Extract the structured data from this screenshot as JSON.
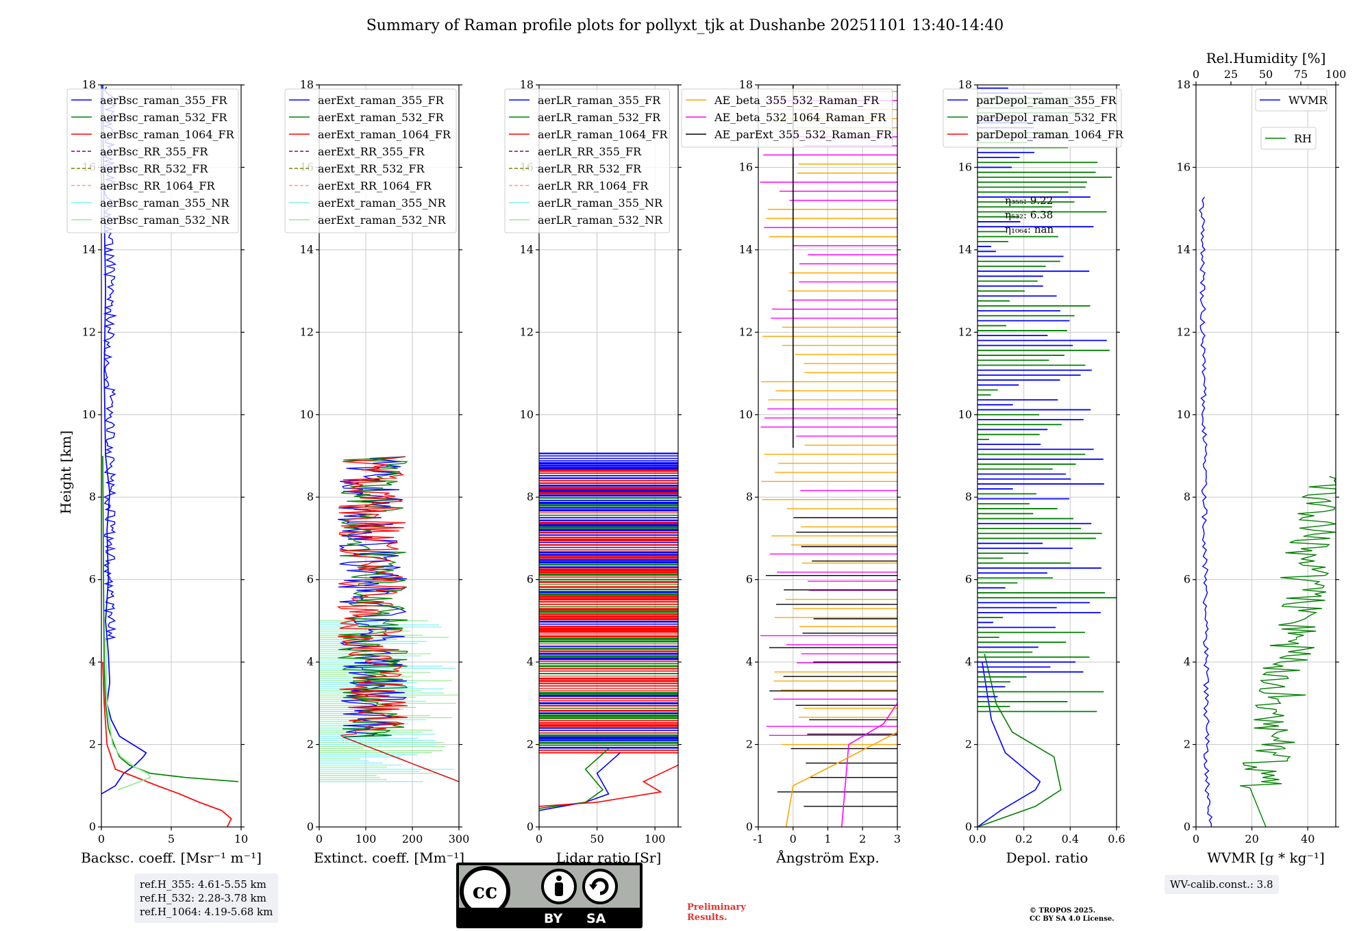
{
  "title": "Summary of Raman profile plots for pollyxt_tjk at Dushanbe 20251101 13:40-14:40",
  "y_axis": {
    "label": "Height [km]",
    "ticks": [
      0,
      2,
      4,
      6,
      8,
      10,
      12,
      14,
      16,
      18
    ],
    "range": [
      0,
      18
    ]
  },
  "chart_data": [
    {
      "type": "line",
      "name": "backscatter",
      "xlabel": "Backsc. coeff. [Msr⁻¹ m⁻¹]",
      "xlim": [
        0,
        10
      ],
      "xticks": [
        0,
        5,
        10
      ],
      "legend": [
        "aerBsc_raman_355_FR",
        "aerBsc_raman_532_FR",
        "aerBsc_raman_1064_FR",
        "aerBsc_RR_355_FR",
        "aerBsc_RR_532_FR",
        "aerBsc_RR_1064_FR",
        "aerBsc_raman_355_NR",
        "aerBsc_raman_532_NR"
      ],
      "series": [
        {
          "name": "aerBsc_raman_355_FR",
          "x": [
            0,
            0.5,
            1.0,
            1.6,
            2.4,
            3.0,
            3.2,
            1.3,
            0.7,
            0.4,
            0.6,
            0.5,
            0.3,
            0.5,
            0.4,
            0.6,
            0.3,
            0.2,
            0.3,
            0.15,
            0.1
          ],
          "h": [
            0.8,
            0.9,
            1.0,
            1.3,
            1.5,
            1.7,
            1.8,
            2.2,
            2.6,
            3.0,
            3.5,
            4.2,
            5.0,
            6.0,
            7.2,
            8.1,
            9.0,
            11.0,
            13.0,
            16.0,
            18.0
          ]
        },
        {
          "name": "aerBsc_raman_532_FR",
          "x": [
            9.8,
            6.0,
            3.5,
            2.0,
            1.3,
            0.9,
            0.5,
            0.3,
            0.2,
            0.15,
            0.1
          ],
          "h": [
            1.1,
            1.2,
            1.3,
            1.5,
            1.7,
            2.0,
            2.4,
            3.0,
            4.0,
            6.0,
            9.0
          ]
        },
        {
          "name": "aerBsc_raman_1064_FR",
          "x": [
            9.0,
            9.3,
            8.6,
            7.0,
            5.6,
            4.0,
            2.5,
            1.0,
            0.4,
            0.2,
            0.1
          ],
          "h": [
            0,
            0.2,
            0.4,
            0.6,
            0.8,
            1.0,
            1.2,
            1.4,
            2.0,
            3.0,
            4.0
          ]
        },
        {
          "name": "aerBsc_raman_532_NR",
          "x": [
            1.2,
            2.0,
            3.5,
            3.3,
            2.4,
            1.4,
            0.8,
            0.4,
            0.3
          ],
          "h": [
            0.9,
            1.0,
            1.2,
            1.3,
            1.45,
            1.7,
            2.0,
            3.0,
            4.6
          ]
        }
      ]
    },
    {
      "type": "line",
      "name": "extinction",
      "xlabel": "Extinct. coeff. [Mm⁻¹]",
      "xlim": [
        0,
        300
      ],
      "xticks": [
        0,
        100,
        200,
        300
      ],
      "legend": [
        "aerExt_raman_355_FR",
        "aerExt_raman_532_FR",
        "aerExt_raman_1064_FR",
        "aerExt_RR_355_FR",
        "aerExt_RR_532_FR",
        "aerExt_RR_1064_FR",
        "aerExt_raman_355_NR",
        "aerExt_raman_532_NR"
      ]
    },
    {
      "type": "line",
      "name": "lidar_ratio",
      "xlabel": "Lidar ratio [Sr]",
      "xlim": [
        0,
        120
      ],
      "xticks": [
        0,
        50,
        100
      ],
      "legend": [
        "aerLR_raman_355_FR",
        "aerLR_raman_532_FR",
        "aerLR_raman_1064_FR",
        "aerLR_RR_355_FR",
        "aerLR_RR_532_FR",
        "aerLR_RR_1064_FR",
        "aerLR_raman_355_NR",
        "aerLR_raman_532_NR"
      ]
    },
    {
      "type": "line",
      "name": "angstrom",
      "xlabel": "Ångström Exp.",
      "xlim": [
        -1,
        3
      ],
      "xticks": [
        -1,
        0,
        1,
        2,
        3
      ],
      "legend": [
        "AE_beta_355_532_Raman_FR",
        "AE_beta_532_1064_Raman_FR",
        "AE_parExt_355_532_Raman_FR"
      ]
    },
    {
      "type": "line",
      "name": "depolarization",
      "xlabel": "Depol. ratio",
      "xlim": [
        0,
        0.6
      ],
      "xticks": [
        "0.0",
        "0.2",
        "0.4",
        "0.6"
      ],
      "legend": [
        "parDepol_raman_355_FR",
        "parDepol_raman_532_FR",
        "parDepol_raman_1064_FR"
      ],
      "annotations": [
        "η₃₅₅: 9.22",
        "η₅₃₂: 6.38",
        "η₁₀₆₄: nan"
      ]
    },
    {
      "type": "line",
      "name": "water_vapor",
      "xlabel": "WVMR [g * kg⁻¹]",
      "xlim": [
        0,
        50
      ],
      "xticks": [
        0,
        20,
        40
      ],
      "top_label": "Rel.Humidity [%]",
      "top_xlim": [
        0,
        100
      ],
      "top_ticks": [
        0,
        25,
        50,
        75,
        100
      ],
      "legend": [
        "WVMR",
        "RH"
      ]
    }
  ],
  "ref_heights": [
    "ref.H_355: 4.61-5.55 km",
    "ref.H_532: 2.28-3.78 km",
    "ref.H_1064: 4.19-5.68 km"
  ],
  "wv_calib": "WV-calib.const.: 3.8",
  "preliminary": [
    "Preliminary",
    "Results."
  ],
  "copyright": [
    "© TROPOS 2025.",
    "CC BY SA 4.0 License."
  ],
  "cc_badge": {
    "left": "BY",
    "right": "SA"
  }
}
